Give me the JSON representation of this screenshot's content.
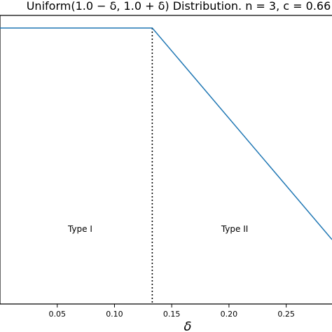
{
  "chart_data": {
    "type": "line",
    "title": "Uniform(1.0 − δ, 1.0 + δ) Distribution. n = 3, c = 0.66",
    "xlabel": "δ",
    "ylabel": "",
    "xlim": [
      0.0,
      0.29
    ],
    "x_ticks": [
      0.05,
      0.1,
      0.15,
      0.2,
      0.25
    ],
    "x_tick_labels": [
      "0.05",
      "0.10",
      "0.15",
      "0.20",
      "0.25"
    ],
    "series": [
      {
        "x": [
          0.0,
          0.133,
          0.29
        ],
        "y": [
          1.0,
          1.0,
          0.1
        ],
        "color": "#1f77b4"
      }
    ],
    "vline": {
      "x": 0.133,
      "style": "dotted",
      "color": "#000000"
    },
    "annotations": [
      {
        "text": "Type I",
        "x": 0.07
      },
      {
        "text": "Type II",
        "x": 0.205
      }
    ],
    "grid": false
  }
}
